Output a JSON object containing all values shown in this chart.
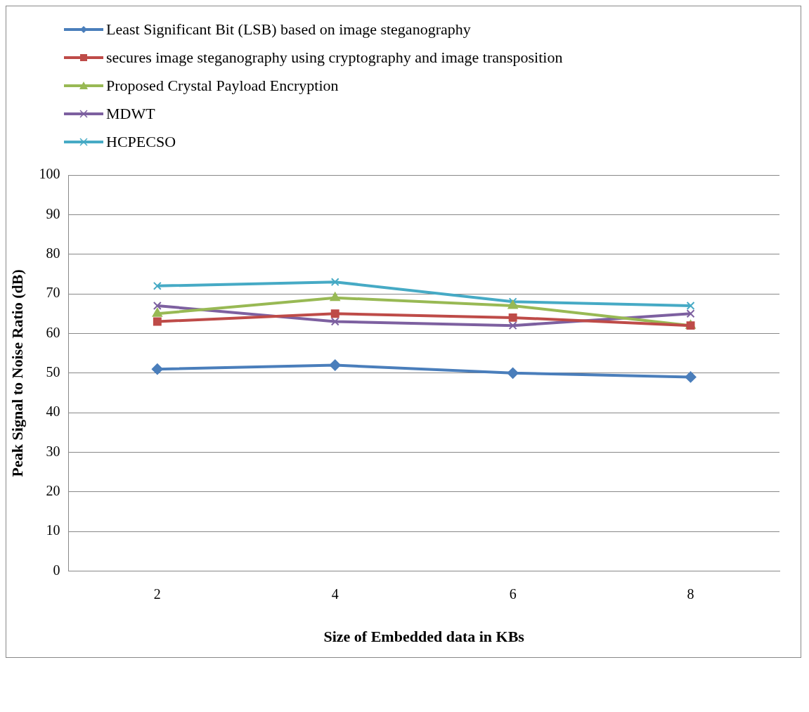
{
  "chart_data": {
    "type": "line",
    "xlabel": "Size of Embedded data in KBs",
    "ylabel": "Peak Signal to Noise Ratio (dB)",
    "categories": [
      "2",
      "4",
      "6",
      "8"
    ],
    "series": [
      {
        "name": "Least Significant Bit (LSB) based on image steganography",
        "color": "#4a7ebb",
        "marker": "diamond",
        "values": [
          51,
          52,
          50,
          49
        ]
      },
      {
        "name": "secures image steganography using cryptography and image transposition",
        "color": "#be4b48",
        "marker": "square",
        "values": [
          63,
          65,
          64,
          62
        ]
      },
      {
        "name": "Proposed Crystal Payload Encryption",
        "color": "#98b954",
        "marker": "triangle",
        "values": [
          65,
          69,
          67,
          62
        ]
      },
      {
        "name": "MDWT",
        "color": "#7d60a0",
        "marker": "cross",
        "values": [
          67,
          63,
          62,
          65
        ]
      },
      {
        "name": "HCPECSO",
        "color": "#46aac5",
        "marker": "cross",
        "values": [
          72,
          73,
          68,
          67
        ]
      }
    ],
    "ylim": [
      0,
      100
    ],
    "yticks": [
      0,
      10,
      20,
      30,
      40,
      50,
      60,
      70,
      80,
      90,
      100
    ],
    "grid": "y",
    "legend": "top left"
  }
}
